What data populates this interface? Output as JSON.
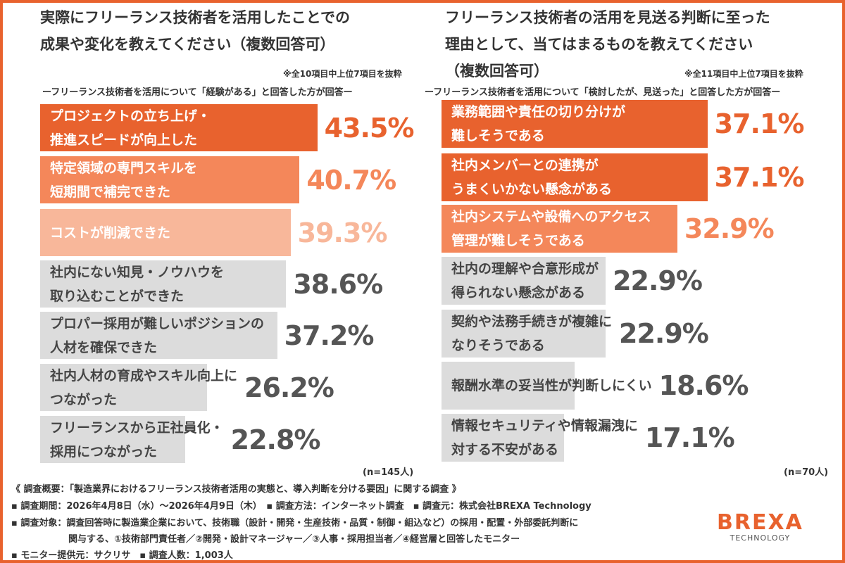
{
  "chart_data": [
    {
      "type": "bar",
      "orientation": "horizontal",
      "title": "実際にフリーランス技術者を活用したことでの\n成果や変化を教えてください（複数回答可）",
      "note": "※全10項目中上位7項目を抜粋",
      "subtitle": "ーフリーランス技術者を活用について「経験がある」と回答した方が回答ー",
      "categories": [
        "プロジェクトの立ち上げ・\n推進スピードが向上した",
        "特定領域の専門スキルを\n短期間で補完できた",
        "コストが削減できた",
        "社内にない知見・ノウハウを\n取り込むことができた",
        "プロパー採用が難しいポジションの\n人材を確保できた",
        "社内人材の育成やスキル向上に\nつながった",
        "フリーランスから正社員化・\n採用につながった"
      ],
      "values": [
        43.5,
        40.7,
        39.3,
        38.6,
        37.2,
        26.2,
        22.8
      ],
      "value_labels": [
        "43.5%",
        "40.7%",
        "39.3%",
        "38.6%",
        "37.2%",
        "26.2%",
        "22.8%"
      ],
      "colors": [
        "#e8622e",
        "#f4875a",
        "#f8b79a",
        "#dcdcdc",
        "#dcdcdc",
        "#dcdcdc",
        "#dcdcdc"
      ],
      "n": "(n=145人)"
    },
    {
      "type": "bar",
      "orientation": "horizontal",
      "title": "フリーランス技術者の活用を見送る判断に至った\n理由として、当てはまるものを教えてください\n（複数回答可）",
      "note": "※全11項目中上位7項目を抜粋",
      "subtitle": "ーフリーランス技術者を活用について「検討したが、見送った」と回答した方が回答ー",
      "categories": [
        "業務範囲や責任の切り分けが\n難しそうである",
        "社内メンバーとの連携が\nうまくいかない懸念がある",
        "社内システムや設備へのアクセス\n管理が難しそうである",
        "社内の理解や合意形成が\n得られない懸念がある",
        "契約や法務手続きが複雑に\nなりそうである",
        "報酬水準の妥当性が判断しにくい",
        "情報セキュリティや情報漏洩に\n対する不安がある"
      ],
      "values": [
        37.1,
        37.1,
        32.9,
        22.9,
        22.9,
        18.6,
        17.1
      ],
      "value_labels": [
        "37.1%",
        "37.1%",
        "32.9%",
        "22.9%",
        "22.9%",
        "18.6%",
        "17.1%"
      ],
      "colors": [
        "#e8622e",
        "#e8622e",
        "#f4875a",
        "#dcdcdc",
        "#dcdcdc",
        "#dcdcdc",
        "#dcdcdc"
      ],
      "n": "(n=70人)"
    }
  ],
  "footer": {
    "overview": "《 調査概要：「製造業界におけるフリーランス技術者活用の実態と、導入判断を分ける要因」に関する調査 》",
    "line1": "▪ 調査期間：2026年4月8日（水）〜2026年4月9日（木）　▪ 調査方法：インターネット調査　▪ 調査元：株式会社BREXA Technology",
    "line2": "▪ 調査対象：調査回答時に製造業企業において、技術職（設計・開発・生産技術・品質・制御・組込など）の採用・配置・外部委託判断に",
    "line3": "関与する、①技術部門責任者／②開発・設計マネージャー／③人事・採用担当者／④経営層と回答したモニター",
    "line4": "▪ モニター提供元：サクリサ　▪ 調査人数：1,003人"
  },
  "logo": {
    "brand": "BREXA",
    "sub": "TECHNOLOGY"
  }
}
